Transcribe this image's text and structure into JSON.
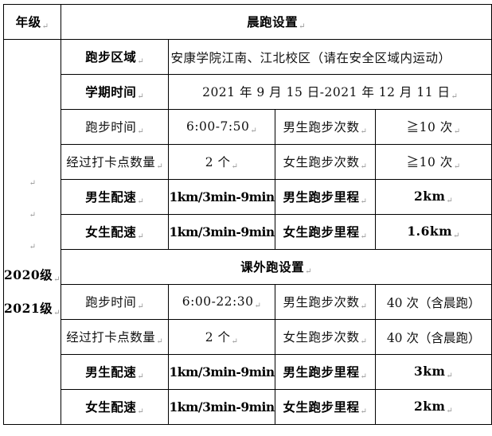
{
  "return_mark": "↵",
  "header": {
    "grade": "年级",
    "morning_title": "晨跑设置"
  },
  "grade_cell": {
    "lines": [
      "2020级",
      "2021级"
    ]
  },
  "morning": {
    "area_label": "跑步区域",
    "area_value": "安康学院江南、江北校区（请在安全区域内运动）",
    "term_label": "学期时间",
    "term_value": "2021 年 9 月 15 日-2021 年 12 月 11 日",
    "rows": [
      [
        "跑步时间",
        "6:00-7:50",
        "男生跑步次数",
        "≧10 次"
      ],
      [
        "经过打卡点数量",
        "2 个",
        "女生跑步次数",
        "≧10 次"
      ],
      [
        "男生配速",
        "1km/3min-9min",
        "男生跑步里程",
        "2km"
      ],
      [
        "女生配速",
        "1km/3min-9min",
        "女生跑步里程",
        "1.6km"
      ]
    ]
  },
  "extra": {
    "title": "课外跑设置",
    "rows": [
      [
        "跑步时间",
        "6:00-22:30",
        "男生跑步次数",
        "40 次（含晨跑）"
      ],
      [
        "经过打卡点数量",
        "2 个",
        "女生跑步次数",
        "40 次（含晨跑）"
      ],
      [
        "男生配速",
        "1km/3min-9min",
        "男生跑步里程",
        "3km"
      ],
      [
        "女生配速",
        "1km/3min-9min",
        "女生跑步里程",
        "2km"
      ]
    ]
  }
}
